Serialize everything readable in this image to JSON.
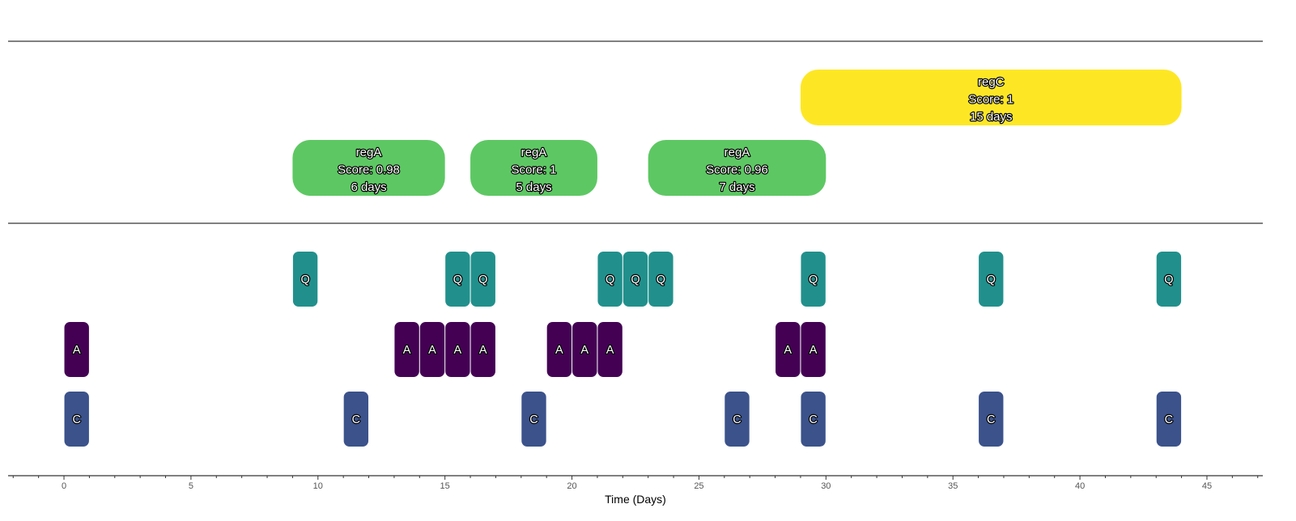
{
  "chart_data": {
    "type": "timeline",
    "xlabel": "Time (Days)",
    "xlim": [
      -2.2,
      47.2
    ],
    "xticks": [
      0,
      5,
      10,
      15,
      20,
      25,
      30,
      35,
      40,
      45
    ],
    "colors": {
      "Q": "#21908c",
      "A": "#440154",
      "C": "#3b528b",
      "regA": "#5dc863",
      "regC": "#fde725"
    },
    "events": [
      {
        "label": "Q",
        "start": 9,
        "end": 10
      },
      {
        "label": "Q",
        "start": 15,
        "end": 16
      },
      {
        "label": "Q",
        "start": 16,
        "end": 17
      },
      {
        "label": "Q",
        "start": 21,
        "end": 22
      },
      {
        "label": "Q",
        "start": 22,
        "end": 23
      },
      {
        "label": "Q",
        "start": 23,
        "end": 24
      },
      {
        "label": "Q",
        "start": 29,
        "end": 30
      },
      {
        "label": "Q",
        "start": 36,
        "end": 37
      },
      {
        "label": "Q",
        "start": 43,
        "end": 44
      },
      {
        "label": "A",
        "start": 0,
        "end": 1
      },
      {
        "label": "A",
        "start": 13,
        "end": 14
      },
      {
        "label": "A",
        "start": 14,
        "end": 15
      },
      {
        "label": "A",
        "start": 15,
        "end": 16
      },
      {
        "label": "A",
        "start": 16,
        "end": 17
      },
      {
        "label": "A",
        "start": 19,
        "end": 20
      },
      {
        "label": "A",
        "start": 20,
        "end": 21
      },
      {
        "label": "A",
        "start": 21,
        "end": 22
      },
      {
        "label": "A",
        "start": 28,
        "end": 29
      },
      {
        "label": "A",
        "start": 29,
        "end": 30
      },
      {
        "label": "C",
        "start": 0,
        "end": 1
      },
      {
        "label": "C",
        "start": 11,
        "end": 12
      },
      {
        "label": "C",
        "start": 18,
        "end": 19
      },
      {
        "label": "C",
        "start": 26,
        "end": 27
      },
      {
        "label": "C",
        "start": 29,
        "end": 30
      },
      {
        "label": "C",
        "start": 36,
        "end": 37
      },
      {
        "label": "C",
        "start": 43,
        "end": 44
      }
    ],
    "regimens": [
      {
        "name": "regA",
        "score": "Score:  0.98",
        "duration": "6  days",
        "start": 9,
        "end": 15,
        "row": 0
      },
      {
        "name": "regA",
        "score": "Score:  1",
        "duration": "5  days",
        "start": 16,
        "end": 21,
        "row": 0
      },
      {
        "name": "regA",
        "score": "Score:  0.96",
        "duration": "7  days",
        "start": 23,
        "end": 30,
        "row": 0
      },
      {
        "name": "regC",
        "score": "Score:  1",
        "duration": "15  days",
        "start": 29,
        "end": 44,
        "row": 1
      }
    ]
  }
}
